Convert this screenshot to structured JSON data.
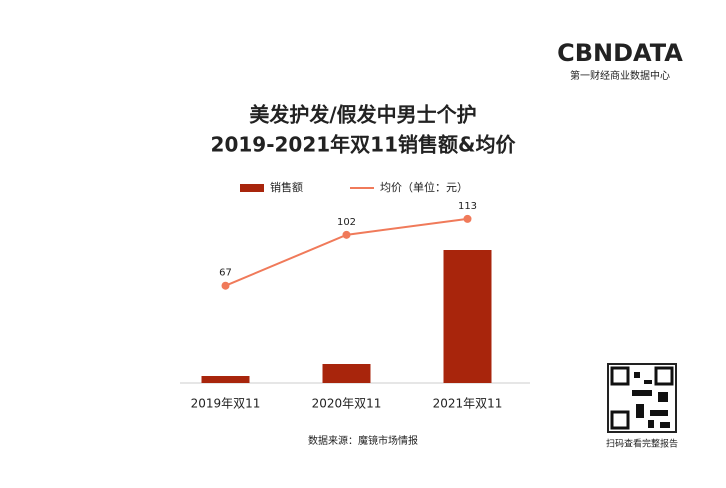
{
  "header": {
    "logo": "CBNDATA",
    "logo_sub": "第一财经商业数据中心"
  },
  "chart_data": {
    "type": "bar-line",
    "title": [
      "美发护发/假发中男士个护",
      "2019-2021年双11销售额&均价"
    ],
    "categories": [
      "2019年双11",
      "2020年双11",
      "2021年双11"
    ],
    "series": [
      {
        "name": "销售额",
        "type": "bar",
        "color": "#a8250c",
        "values": [
          7,
          19,
          133
        ]
      },
      {
        "name": "均价（单位：元）",
        "type": "line",
        "axis": "y2",
        "color": "#f07a5a",
        "values": [
          67,
          102,
          113
        ]
      }
    ],
    "ylim": [
      0,
      183
    ],
    "y2lim": [
      0,
      126
    ],
    "legend": "top"
  },
  "footer": {
    "source": "数据来源：魔镜市场情报"
  },
  "qr": {
    "caption": "扫码查看完整报告"
  }
}
